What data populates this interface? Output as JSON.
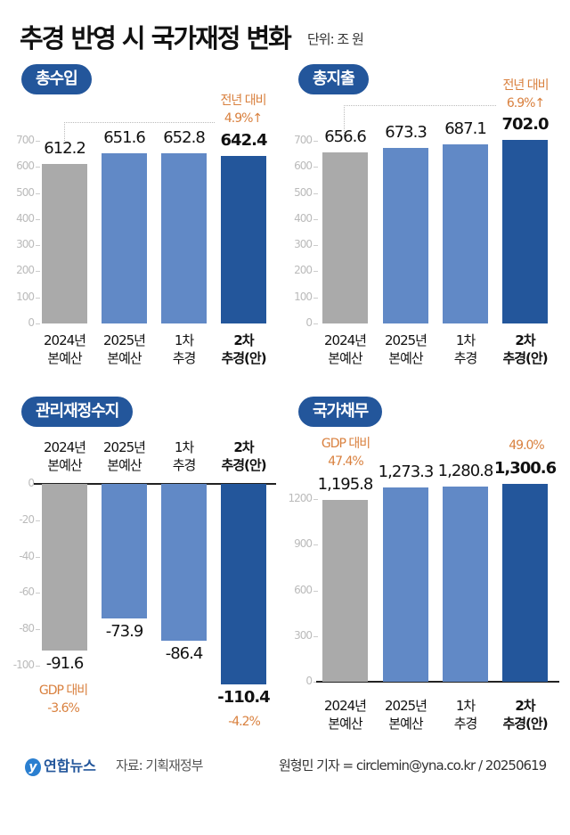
{
  "header": {
    "title": "추경 반영 시 국가재정 변화",
    "unit": "단위: 조 원"
  },
  "colors": {
    "gray": "#aaaaaa",
    "light_blue": "#6189c6",
    "dark_blue": "#23569b",
    "note_orange": "#d9803e"
  },
  "chart_data": [
    {
      "type": "bar",
      "title": "총수입",
      "categories": [
        "2024년 본예산",
        "2025년 본예산",
        "1차 추경",
        "2차 추경(안)"
      ],
      "cat_lines": [
        [
          "2024년",
          "본예산"
        ],
        [
          "2025년",
          "본예산"
        ],
        [
          "1차",
          "추경"
        ],
        [
          "2차",
          "추경(안)"
        ]
      ],
      "values": [
        612.2,
        651.6,
        652.8,
        642.4
      ],
      "labels": [
        "612.2",
        "651.6",
        "652.8",
        "642.4"
      ],
      "yticks": [
        0,
        100,
        200,
        300,
        400,
        500,
        600,
        700
      ],
      "ylim": [
        0,
        700
      ],
      "annotations": [
        {
          "lines": [
            "전년 대비",
            "4.9%↑"
          ]
        }
      ]
    },
    {
      "type": "bar",
      "title": "총지출",
      "categories": [
        "2024년 본예산",
        "2025년 본예산",
        "1차 추경",
        "2차 추경(안)"
      ],
      "cat_lines": [
        [
          "2024년",
          "본예산"
        ],
        [
          "2025년",
          "본예산"
        ],
        [
          "1차",
          "추경"
        ],
        [
          "2차",
          "추경(안)"
        ]
      ],
      "values": [
        656.6,
        673.3,
        687.1,
        702.0
      ],
      "labels": [
        "656.6",
        "673.3",
        "687.1",
        "702.0"
      ],
      "yticks": [
        0,
        100,
        200,
        300,
        400,
        500,
        600,
        700
      ],
      "ylim": [
        0,
        700
      ],
      "annotations": [
        {
          "lines": [
            "전년 대비",
            "6.9%↑"
          ]
        }
      ]
    },
    {
      "type": "bar",
      "title": "관리재정수지",
      "categories": [
        "2024년 본예산",
        "2025년 본예산",
        "1차 추경",
        "2차 추경(안)"
      ],
      "cat_lines": [
        [
          "2024년",
          "본예산"
        ],
        [
          "2025년",
          "본예산"
        ],
        [
          "1차",
          "추경"
        ],
        [
          "2차",
          "추경(안)"
        ]
      ],
      "values": [
        -91.6,
        -73.9,
        -86.4,
        -110.4
      ],
      "labels": [
        "-91.6",
        "-73.9",
        "-86.4",
        "-110.4"
      ],
      "yticks": [
        0,
        -20,
        -40,
        -60,
        -80,
        -100
      ],
      "ylim": [
        -110.4,
        0
      ],
      "annotations": [
        {
          "lines": [
            "GDP 대비",
            "-3.6%"
          ]
        },
        {
          "lines": [
            "-4.2%"
          ]
        }
      ]
    },
    {
      "type": "bar",
      "title": "국가채무",
      "categories": [
        "2024년 본예산",
        "2025년 본예산",
        "1차 추경",
        "2차 추경(안)"
      ],
      "cat_lines": [
        [
          "2024년",
          "본예산"
        ],
        [
          "2025년",
          "본예산"
        ],
        [
          "1차",
          "추경"
        ],
        [
          "2차",
          "추경(안)"
        ]
      ],
      "values": [
        1195.8,
        1273.3,
        1280.8,
        1300.6
      ],
      "labels": [
        "1,195.8",
        "1,273.3",
        "1,280.8",
        "1,300.6"
      ],
      "yticks": [
        0,
        300,
        600,
        900,
        1200
      ],
      "ylim": [
        0,
        1300.6
      ],
      "annotations": [
        {
          "lines": [
            "GDP 대비",
            "47.4%"
          ]
        },
        {
          "lines": [
            "49.0%"
          ]
        }
      ]
    }
  ],
  "footer": {
    "logo_text": "연합뉴스",
    "source": "자료: 기획재정부",
    "credit": "원형민 기자 = circlemin@yna.co.kr / 20250619"
  }
}
